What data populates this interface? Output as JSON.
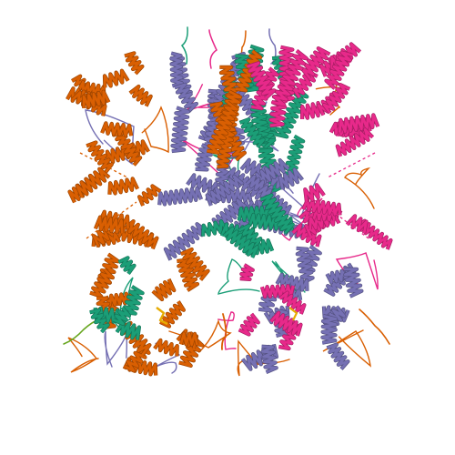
{
  "image": {
    "kind": "protein-structure-cartoon",
    "background": "#ffffff",
    "chain_colors": {
      "chain_a": "#d95f02",
      "chain_b": "#7570b3",
      "chain_c": "#e7298a",
      "chain_d": "#1b9e77"
    },
    "accent_colors": {
      "ligand": "#e6ab02",
      "loop_olive": "#66a61e"
    }
  }
}
